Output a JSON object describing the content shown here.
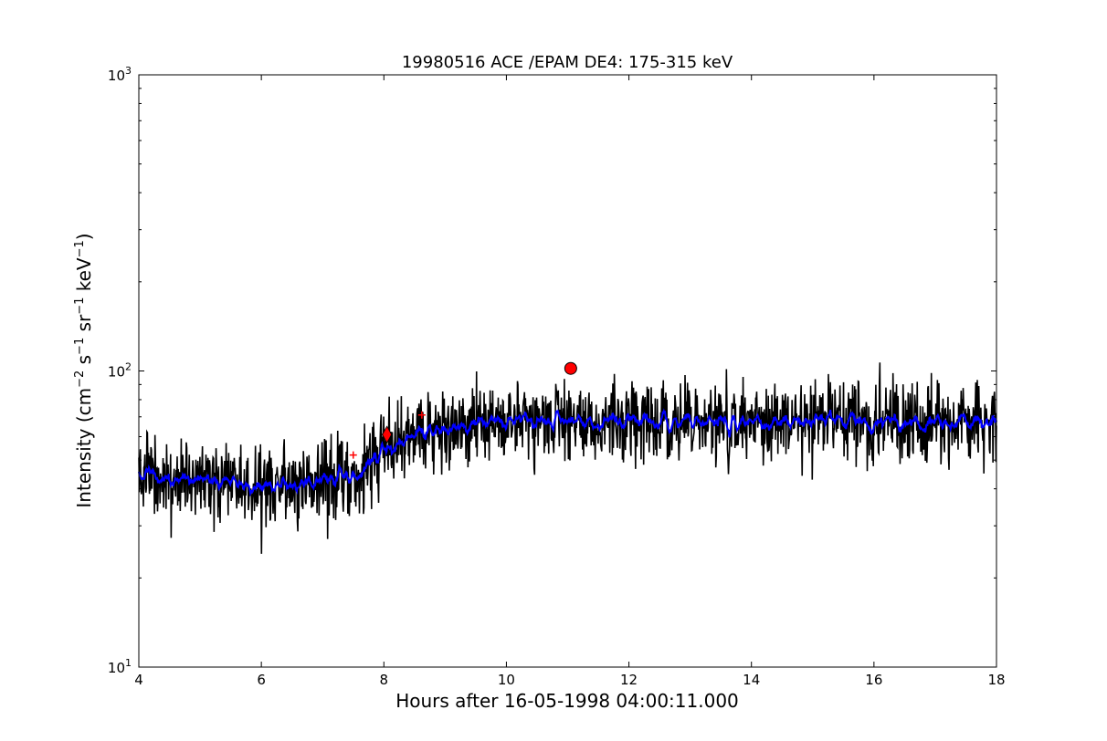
{
  "chart_data": {
    "type": "line",
    "title": "19980516 ACE /EPAM DE4: 175-315 keV",
    "xlabel": "Hours after 16-05-1998 04:00:11.000",
    "ylabel_parts": [
      "Intensity (cm",
      "−2",
      " s",
      "−1",
      " sr",
      "−1",
      " keV",
      "−1",
      ")"
    ],
    "xlim": [
      4,
      18
    ],
    "ylim": [
      10,
      1000
    ],
    "yscale": "log",
    "x_ticks": [
      "4",
      "6",
      "8",
      "10",
      "12",
      "14",
      "16",
      "18"
    ],
    "y_ticks": [
      {
        "value": 10,
        "base": "10",
        "exp": "1"
      },
      {
        "value": 100,
        "base": "10",
        "exp": "2"
      },
      {
        "value": 1000,
        "base": "10",
        "exp": "3"
      }
    ],
    "grid": false,
    "series": [
      {
        "style": "black noisy raw intensity",
        "color": "#000000",
        "x": [
          4.0,
          4.5,
          5.0,
          5.5,
          6.0,
          6.5,
          7.0,
          7.5,
          8.0,
          8.5,
          9.0,
          9.5,
          9.8,
          10.0,
          10.5,
          11.0,
          11.5,
          12.0,
          12.5,
          13.0,
          13.5,
          14.0,
          14.5,
          15.0,
          15.5,
          16.0,
          16.5,
          17.0,
          17.5,
          18.0
        ],
        "values": [
          44,
          44,
          43,
          42,
          41,
          41,
          43,
          45,
          52,
          60,
          64,
          66,
          70,
          68,
          68,
          68,
          68,
          68,
          68,
          68,
          68,
          67,
          67,
          67,
          67,
          67,
          67,
          67,
          67,
          67
        ],
        "noise_range": [
          19,
          115
        ]
      },
      {
        "style": "blue smoothed intensity",
        "color": "#0000ff",
        "x": [
          4.0,
          4.5,
          5.0,
          5.5,
          6.0,
          6.5,
          7.0,
          7.5,
          8.0,
          8.5,
          9.0,
          9.5,
          9.8,
          10.0,
          10.5,
          11.0,
          11.5,
          12.0,
          12.5,
          13.0,
          13.5,
          14.0,
          14.5,
          15.0,
          15.5,
          16.0,
          16.5,
          17.0,
          17.5,
          18.0
        ],
        "values": [
          44,
          44,
          43,
          42,
          41,
          41,
          43,
          45,
          52,
          60,
          64,
          66,
          70,
          68,
          68,
          68,
          68,
          68,
          68,
          68,
          68,
          67,
          67,
          67,
          67,
          67,
          67,
          67,
          67,
          67
        ]
      }
    ],
    "markers": [
      {
        "shape": "circle",
        "x": 11.05,
        "y": 102,
        "color": "#ff0000"
      },
      {
        "shape": "diamond",
        "x": 8.05,
        "y": 61,
        "color": "#ff0000"
      },
      {
        "shape": "plus",
        "x": 7.5,
        "y": 52,
        "color": "#ff0000"
      },
      {
        "shape": "plus",
        "x": 8.62,
        "y": 71,
        "color": "#ff0000"
      }
    ]
  }
}
